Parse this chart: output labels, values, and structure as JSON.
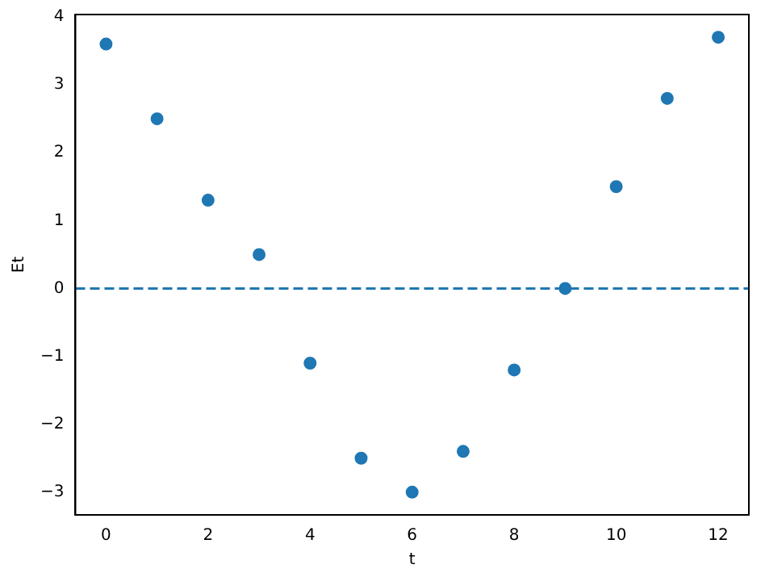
{
  "chart_data": {
    "type": "scatter",
    "xlabel": "t",
    "ylabel": "Et",
    "x": [
      0,
      1,
      2,
      3,
      4,
      5,
      6,
      7,
      8,
      9,
      10,
      11,
      12
    ],
    "series": [
      {
        "color": "#1f77b4",
        "values": [
          3.6,
          2.5,
          1.3,
          0.5,
          -1.1,
          -2.5,
          -3.0,
          -2.4,
          -1.2,
          0,
          1.5,
          2.8,
          3.7
        ]
      }
    ],
    "xlim": [
      -0.6,
      12.6
    ],
    "xticks": [
      0,
      2,
      4,
      6,
      8,
      10,
      12
    ],
    "ylim": [
      -3.335,
      4.035
    ],
    "yticks": [
      -3,
      -2,
      -1,
      0,
      1,
      2,
      3,
      4
    ],
    "ref_lines": [
      {
        "axis": "y",
        "value": 0,
        "color": "#1f77b4",
        "line_style": "dashed"
      }
    ],
    "marker": "circle",
    "grid": false,
    "legend": false
  }
}
